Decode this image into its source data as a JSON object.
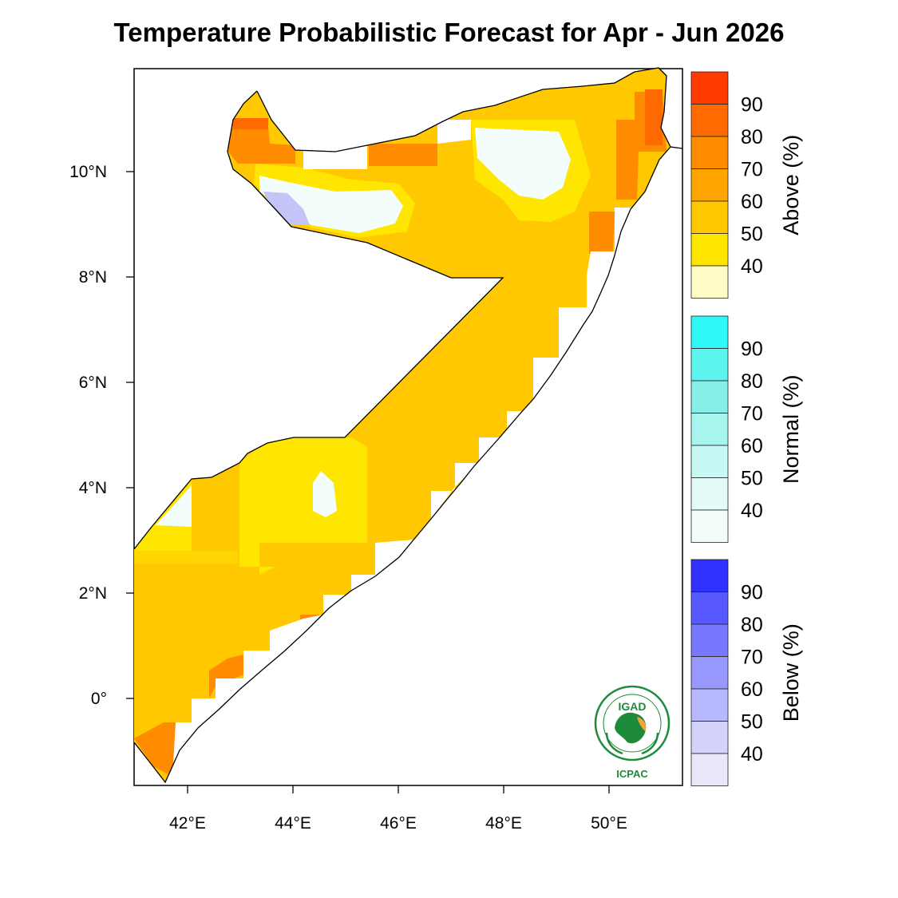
{
  "title": "Temperature Probabilistic Forecast for Apr - Jun 2026",
  "axes": {
    "x_ticks": [
      "42°E",
      "44°E",
      "46°E",
      "48°E",
      "50°E"
    ],
    "y_ticks": [
      "10°N",
      "8°N",
      "6°N",
      "4°N",
      "2°N",
      "0°"
    ]
  },
  "colorbars": [
    {
      "label": "Above (%)",
      "ticks": [
        "90",
        "80",
        "70",
        "60",
        "50",
        "40"
      ],
      "colors": [
        "#ff3a00",
        "#ff6a00",
        "#ff8c00",
        "#ffa500",
        "#ffc800",
        "#ffe600",
        "#fffcc8"
      ]
    },
    {
      "label": "Normal (%)",
      "ticks": [
        "90",
        "80",
        "70",
        "60",
        "50",
        "40"
      ],
      "colors": [
        "#30f8f8",
        "#5cf4ee",
        "#86f0e8",
        "#a8f4ee",
        "#c8f8f4",
        "#e2fbf9",
        "#f2fdfc"
      ]
    },
    {
      "label": "Below (%)",
      "ticks": [
        "90",
        "80",
        "70",
        "60",
        "50",
        "40"
      ],
      "colors": [
        "#3030ff",
        "#5858ff",
        "#7878ff",
        "#9898ff",
        "#b8b8ff",
        "#d2d2fa",
        "#e8e8fa"
      ]
    }
  ],
  "logo": {
    "top": "IGAD",
    "bottom": "ICPAC"
  }
}
